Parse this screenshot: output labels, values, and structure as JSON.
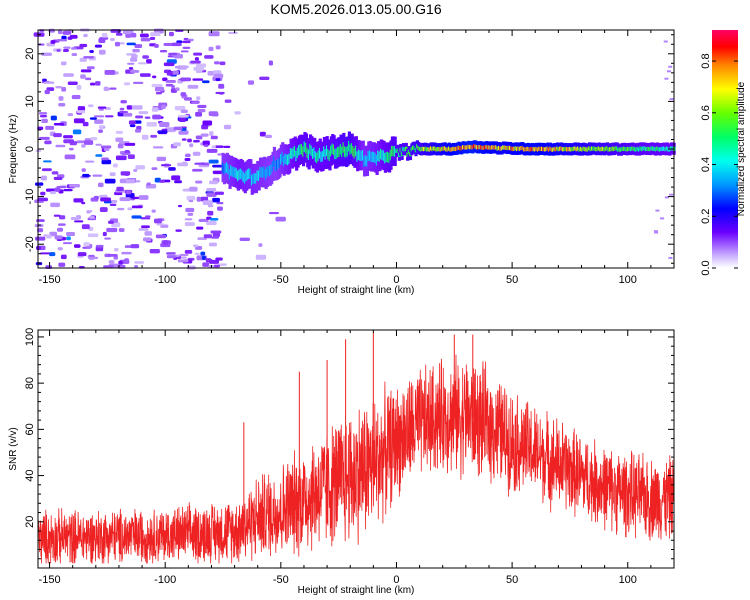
{
  "title": "KOM5.2026.013.05.00.G16",
  "colors": {
    "snr_line": "#ee2222",
    "axis": "#000000"
  },
  "chart_data": [
    {
      "type": "heatmap",
      "name": "spectrogram",
      "xlabel": "Height of straight line (km)",
      "ylabel": "Frequency (Hz)",
      "xlim": [
        -155,
        120
      ],
      "ylim": [
        -25,
        25
      ],
      "xticks": [
        -150,
        -100,
        -50,
        0,
        50,
        100
      ],
      "xtick_labels": [
        "-150",
        "-100",
        "-50",
        "0",
        "50",
        "100"
      ],
      "yticks": [
        -20,
        -10,
        0,
        10,
        20
      ],
      "ytick_labels": [
        "-20",
        "-10",
        "0",
        "10",
        "20"
      ],
      "colorbar": {
        "label": "Normalized spectral amplitude",
        "range": [
          0,
          0.92
        ],
        "ticks": [
          0.0,
          0.2,
          0.4,
          0.6,
          0.8
        ],
        "tick_labels": [
          "0.0",
          "0.2",
          "0.4",
          "0.6",
          "0.8"
        ]
      },
      "ridge": {
        "description": "Dominant frequency track (Hz) versus height (km)",
        "points": [
          {
            "x": -75,
            "y": -4,
            "amp": 0.35
          },
          {
            "x": -68,
            "y": -5.5,
            "amp": 0.45
          },
          {
            "x": -60,
            "y": -6,
            "amp": 0.4
          },
          {
            "x": -52,
            "y": -3,
            "amp": 0.35
          },
          {
            "x": -46,
            "y": -1.5,
            "amp": 0.45
          },
          {
            "x": -40,
            "y": 0,
            "amp": 0.55
          },
          {
            "x": -34,
            "y": -1.5,
            "amp": 0.5
          },
          {
            "x": -27,
            "y": -0.5,
            "amp": 0.55
          },
          {
            "x": -20,
            "y": 0,
            "amp": 0.6
          },
          {
            "x": -14,
            "y": -2,
            "amp": 0.4
          },
          {
            "x": -8,
            "y": -2,
            "amp": 0.45
          },
          {
            "x": -2,
            "y": -1,
            "amp": 0.55
          },
          {
            "x": 5,
            "y": -0.5,
            "amp": 0.6
          },
          {
            "x": 10,
            "y": 0,
            "amp": 0.65
          },
          {
            "x": 18,
            "y": 0,
            "amp": 0.75
          },
          {
            "x": 25,
            "y": 0,
            "amp": 0.85
          },
          {
            "x": 32,
            "y": 0.5,
            "amp": 0.9
          },
          {
            "x": 45,
            "y": 0.2,
            "amp": 0.8
          },
          {
            "x": 60,
            "y": 0,
            "amp": 0.85
          },
          {
            "x": 75,
            "y": 0,
            "amp": 0.75
          },
          {
            "x": 90,
            "y": 0,
            "amp": 0.65
          },
          {
            "x": 105,
            "y": 0,
            "amp": 0.55
          },
          {
            "x": 120,
            "y": 0,
            "amp": 0.5
          }
        ]
      },
      "noise_region": {
        "x_from": -155,
        "x_to": -75,
        "amp_max": 0.25
      }
    },
    {
      "type": "line",
      "name": "snr",
      "xlabel": "Height of straight line (km)",
      "ylabel": "SNR (v/v)",
      "xlim": [
        -155,
        120
      ],
      "ylim": [
        0,
        103
      ],
      "xticks": [
        -150,
        -100,
        -50,
        0,
        50,
        100
      ],
      "xtick_labels": [
        "-150",
        "-100",
        "-50",
        "0",
        "50",
        "100"
      ],
      "yticks": [
        20,
        40,
        60,
        80,
        100
      ],
      "ytick_labels": [
        "20",
        "40",
        "60",
        "80",
        "100"
      ],
      "envelope": {
        "description": "Approximate mean (center) and spread of the noisy SNR trace",
        "x": [
          -155,
          -100,
          -70,
          -60,
          -50,
          -40,
          -30,
          -20,
          -10,
          0,
          10,
          20,
          30,
          40,
          50,
          60,
          70,
          80,
          90,
          100,
          110,
          120
        ],
        "center": [
          13,
          14,
          16,
          22,
          25,
          30,
          35,
          40,
          45,
          55,
          62,
          66,
          66,
          62,
          55,
          50,
          45,
          40,
          35,
          32,
          30,
          30
        ],
        "spread": [
          12,
          12,
          14,
          18,
          20,
          24,
          26,
          30,
          30,
          24,
          24,
          24,
          26,
          24,
          22,
          20,
          20,
          18,
          18,
          18,
          18,
          18
        ]
      },
      "spikes": [
        {
          "x": -66,
          "y": 63
        },
        {
          "x": -42,
          "y": 85
        },
        {
          "x": -30,
          "y": 90
        },
        {
          "x": -22,
          "y": 99
        },
        {
          "x": -10,
          "y": 102
        },
        {
          "x": 25,
          "y": 101
        },
        {
          "x": 33,
          "y": 101
        }
      ]
    }
  ]
}
